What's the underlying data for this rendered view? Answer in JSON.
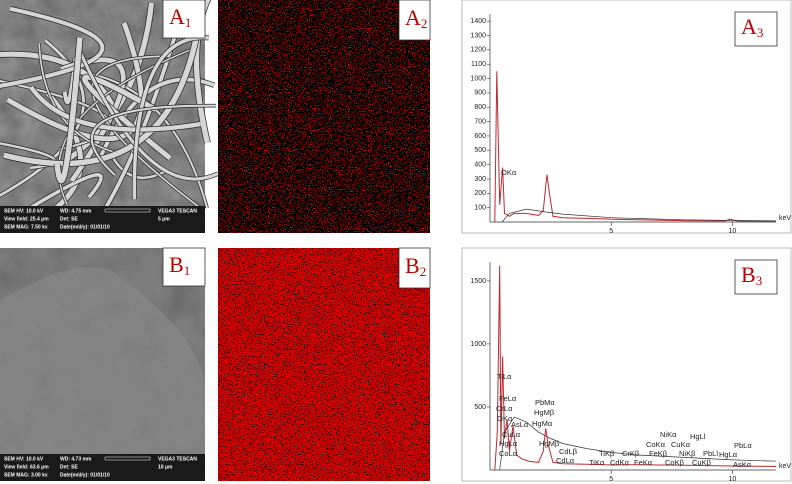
{
  "images": [
    {
      "kind": "sem",
      "label": {
        "letter": "A",
        "sub": "1"
      },
      "info": [
        "SEM HV: 10.0 kV",
        "WD: 4.75 mm",
        "VEGA3 TESCAN",
        "View field: 25.4 μm",
        "Det: SE",
        "5 μm",
        "SEM MAG: 7.50 kx",
        "Date(m/d/y): 01/01/10"
      ]
    },
    {
      "kind": "map",
      "label": {
        "letter": "A",
        "sub": "2"
      }
    },
    {
      "kind": "sem",
      "label": {
        "letter": "B",
        "sub": "1"
      },
      "info": [
        "SEM HV: 10.0 kV",
        "WD: 4.73 mm",
        "VEGA3 TESCAN",
        "View field: 63.6 μm",
        "Det: SE",
        "10 μm",
        "SEM MAG: 3.00 kx",
        "Date(m/d/y): 01/01/10"
      ]
    },
    {
      "kind": "map",
      "label": {
        "letter": "B",
        "sub": "2"
      }
    }
  ],
  "chart_data": [
    {
      "type": "line",
      "label": {
        "letter": "A",
        "sub": "3"
      },
      "xlabel": "keV",
      "xlim": [
        0,
        11.8
      ],
      "xticks": [
        5,
        10
      ],
      "ylim": [
        0,
        1450
      ],
      "yticks": [
        100,
        200,
        300,
        400,
        500,
        600,
        700,
        800,
        900,
        1000,
        1100,
        1200,
        1300,
        1400
      ],
      "annotations": [
        "OKα"
      ],
      "series": [
        {
          "color": "#c0282d",
          "x": [
            0.2,
            0.28,
            0.4,
            0.52,
            0.6,
            0.8,
            1.0,
            1.5,
            2.0,
            2.2,
            2.3,
            2.35,
            2.45,
            2.6,
            3,
            4,
            5,
            6,
            8,
            9.7,
            9.9,
            10.2,
            11,
            11.8
          ],
          "values": [
            0,
            1050,
            120,
            380,
            60,
            40,
            60,
            60,
            45,
            80,
            250,
            330,
            200,
            40,
            30,
            25,
            20,
            15,
            10,
            8,
            20,
            8,
            5,
            3
          ]
        },
        {
          "color": "#333333",
          "x": [
            0.5,
            0.8,
            1.5,
            2.3,
            3,
            5,
            8,
            11.8
          ],
          "values": [
            0,
            60,
            90,
            70,
            55,
            30,
            15,
            8
          ]
        }
      ]
    },
    {
      "type": "line",
      "label": {
        "letter": "B",
        "sub": "3"
      },
      "xlabel": "keV",
      "xlim": [
        0,
        11.8
      ],
      "xticks": [
        5,
        10
      ],
      "ylim": [
        0,
        1650
      ],
      "yticks": [
        500,
        1000,
        1500
      ],
      "annotations": [
        "TiLα",
        "FeLα",
        "CrLα",
        "OKα",
        "CuLα",
        "HgLα",
        "CoLα",
        "AsLα",
        "PbMα",
        "HgMβ",
        "HgMα",
        "HgMβ",
        "CdLβ",
        "CdLα",
        "TiKβ",
        "TiKα",
        "CdKα",
        "CrKβ",
        "FeKα",
        "CoKα",
        "FeKβ",
        "NiKα",
        "CuKα",
        "CoKβ",
        "NiKβ",
        "HgLl",
        "CuKβ",
        "PbLl",
        "HgLα",
        "PbLα",
        "AsKα"
      ],
      "series": [
        {
          "color": "#c0282d",
          "x": [
            0.2,
            0.3,
            0.4,
            0.45,
            0.52,
            0.6,
            0.7,
            0.8,
            0.95,
            1.1,
            1.3,
            1.6,
            2.0,
            2.2,
            2.3,
            2.4,
            2.6,
            3,
            4,
            5,
            6,
            7,
            8,
            9,
            10,
            11,
            11.8
          ],
          "values": [
            0,
            300,
            1620,
            200,
            900,
            250,
            400,
            150,
            350,
            120,
            90,
            70,
            60,
            150,
            330,
            200,
            60,
            50,
            45,
            40,
            42,
            40,
            38,
            35,
            32,
            30,
            28
          ]
        },
        {
          "color": "#333333",
          "x": [
            0.4,
            0.6,
            1.0,
            1.5,
            2.0,
            2.5,
            3,
            4,
            5,
            6,
            8,
            10,
            11.8
          ],
          "values": [
            0,
            300,
            420,
            380,
            300,
            250,
            210,
            170,
            140,
            120,
            100,
            80,
            70
          ]
        }
      ]
    }
  ]
}
